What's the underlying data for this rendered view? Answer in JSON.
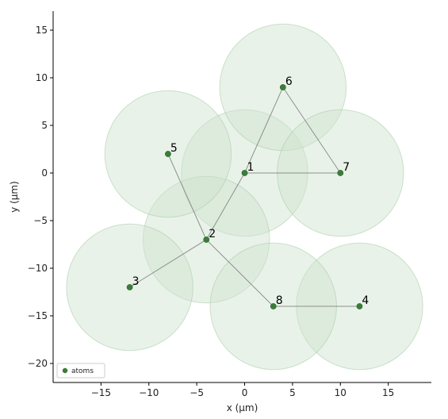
{
  "chart_data": {
    "type": "scatter",
    "title": "",
    "xlabel": "x (µm)",
    "ylabel": "y (µm)",
    "xlim": [
      -20,
      19.5
    ],
    "ylim": [
      -22,
      17
    ],
    "xticks": [
      -15,
      -10,
      -5,
      0,
      5,
      10,
      15
    ],
    "yticks": [
      -20,
      -15,
      -10,
      -5,
      0,
      5,
      10,
      15
    ],
    "grid": false,
    "legend": {
      "position": "bottom-left",
      "entries": [
        "atoms"
      ]
    },
    "blockade_radius": 6.6,
    "colors": {
      "point": "#3a7d3a",
      "point_edge": "#2d6a2d",
      "disk_fill": "#cfe2cf",
      "disk_edge": "#9fc79f",
      "bond": "#7f7f7f"
    },
    "points": [
      {
        "label": "1",
        "x": 0,
        "y": 0
      },
      {
        "label": "2",
        "x": -4,
        "y": -7
      },
      {
        "label": "3",
        "x": -12,
        "y": -12
      },
      {
        "label": "4",
        "x": 12,
        "y": -14
      },
      {
        "label": "5",
        "x": -8,
        "y": 2
      },
      {
        "label": "6",
        "x": 4,
        "y": 9
      },
      {
        "label": "7",
        "x": 10,
        "y": 0
      },
      {
        "label": "8",
        "x": 3,
        "y": -14
      }
    ],
    "bonds": [
      [
        "1",
        "2"
      ],
      [
        "1",
        "6"
      ],
      [
        "1",
        "7"
      ],
      [
        "6",
        "7"
      ],
      [
        "5",
        "2"
      ],
      [
        "3",
        "2"
      ],
      [
        "2",
        "8"
      ],
      [
        "8",
        "4"
      ]
    ]
  }
}
